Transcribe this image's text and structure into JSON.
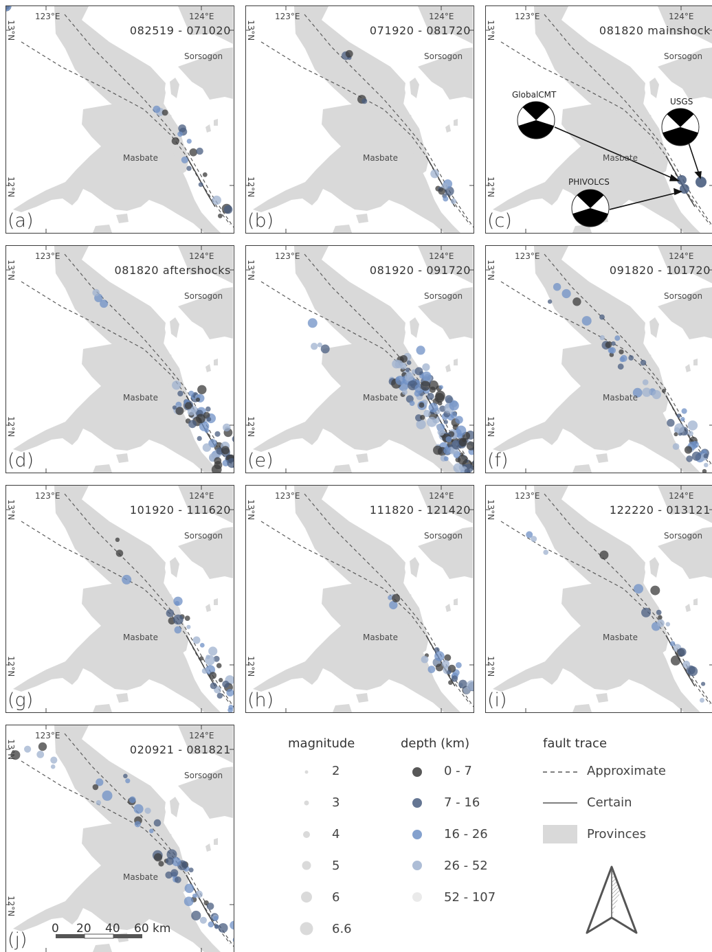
{
  "map": {
    "lon_left": "123°E",
    "lon_right": "124°E",
    "lat_top": "13°N",
    "lat_bottom": "12°N",
    "place_sorsogon": "Sorsogon",
    "place_masbate": "Masbate"
  },
  "panels": [
    {
      "id": "a",
      "label": "(a)",
      "title": "082519 - 071020"
    },
    {
      "id": "b",
      "label": "(b)",
      "title": "071920 - 081720"
    },
    {
      "id": "c",
      "label": "(c)",
      "title": "081820 mainshock"
    },
    {
      "id": "d",
      "label": "(d)",
      "title": "081820 aftershocks"
    },
    {
      "id": "e",
      "label": "(e)",
      "title": "081920 - 091720"
    },
    {
      "id": "f",
      "label": "(f)",
      "title": "091820 - 101720"
    },
    {
      "id": "g",
      "label": "(g)",
      "title": "101920 - 111620"
    },
    {
      "id": "h",
      "label": "(h)",
      "title": "111820 - 121420"
    },
    {
      "id": "i",
      "label": "(i)",
      "title": "122220 - 013121"
    },
    {
      "id": "j",
      "label": "(j)",
      "title": "020921 - 081821"
    }
  ],
  "mechanisms": {
    "globalcmt": "GlobalCMT",
    "usgs": "USGS",
    "phivolcs": "PHIVOLCS"
  },
  "legend": {
    "magnitude_title": "magnitude",
    "magnitudes": [
      "2",
      "3",
      "4",
      "5",
      "6",
      "6.6"
    ],
    "depth_title": "depth (km)",
    "depths": [
      {
        "label": "0 - 7",
        "color": "#3b3b3b"
      },
      {
        "label": "7 - 16",
        "color": "#4a5e80"
      },
      {
        "label": "16 - 26",
        "color": "#6f90c6"
      },
      {
        "label": "26 - 52",
        "color": "#9fb1cf"
      },
      {
        "label": "52 - 107",
        "color": "#e6e6e6"
      }
    ],
    "fault_title": "fault trace",
    "fault_items": [
      "Approximate",
      "Certain",
      "Provinces"
    ]
  },
  "scalebar": {
    "ticks": [
      "0",
      "20",
      "40",
      "60"
    ],
    "unit": "km"
  },
  "colors": {
    "land": "#d9d9d9",
    "fault": "#555555",
    "frame": "#3a3a3a"
  }
}
